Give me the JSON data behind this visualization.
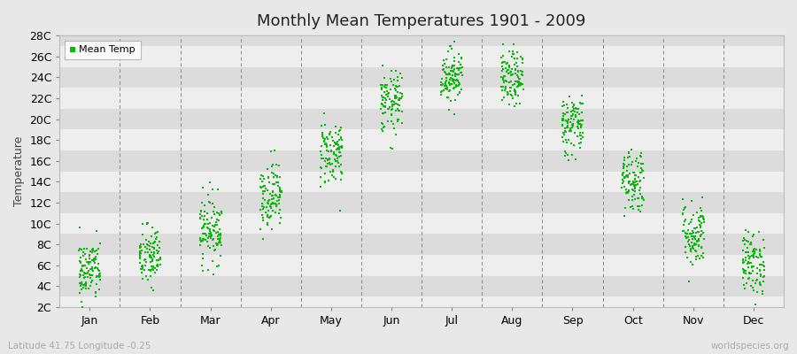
{
  "title": "Monthly Mean Temperatures 1901 - 2009",
  "ylabel": "Temperature",
  "xlabel_bottom_left": "Latitude 41.75 Longitude -0.25",
  "xlabel_bottom_right": "worldspecies.org",
  "legend_label": "Mean Temp",
  "dot_color": "#00bb00",
  "background_color": "#e8e8e8",
  "plot_bg_color": "#e8e8e8",
  "stripe_light": "#eeeeee",
  "stripe_dark": "#dcdcdc",
  "months": [
    "Jan",
    "Feb",
    "Mar",
    "Apr",
    "May",
    "Jun",
    "Jul",
    "Aug",
    "Sep",
    "Oct",
    "Nov",
    "Dec"
  ],
  "ytick_labels": [
    "2C",
    "4C",
    "6C",
    "8C",
    "10C",
    "12C",
    "14C",
    "16C",
    "18C",
    "20C",
    "22C",
    "24C",
    "26C",
    "28C"
  ],
  "ytick_values": [
    2,
    4,
    6,
    8,
    10,
    12,
    14,
    16,
    18,
    20,
    22,
    24,
    26,
    28
  ],
  "ylim": [
    2,
    28
  ],
  "n_years": 109,
  "monthly_means": [
    5.5,
    6.8,
    9.5,
    12.8,
    16.8,
    21.5,
    24.2,
    23.8,
    19.5,
    14.2,
    9.0,
    6.2
  ],
  "monthly_stds": [
    1.5,
    1.5,
    1.6,
    1.6,
    1.6,
    1.5,
    1.3,
    1.3,
    1.5,
    1.6,
    1.6,
    1.5
  ],
  "seed": 42,
  "vline_color": "#888888",
  "dot_size": 3
}
